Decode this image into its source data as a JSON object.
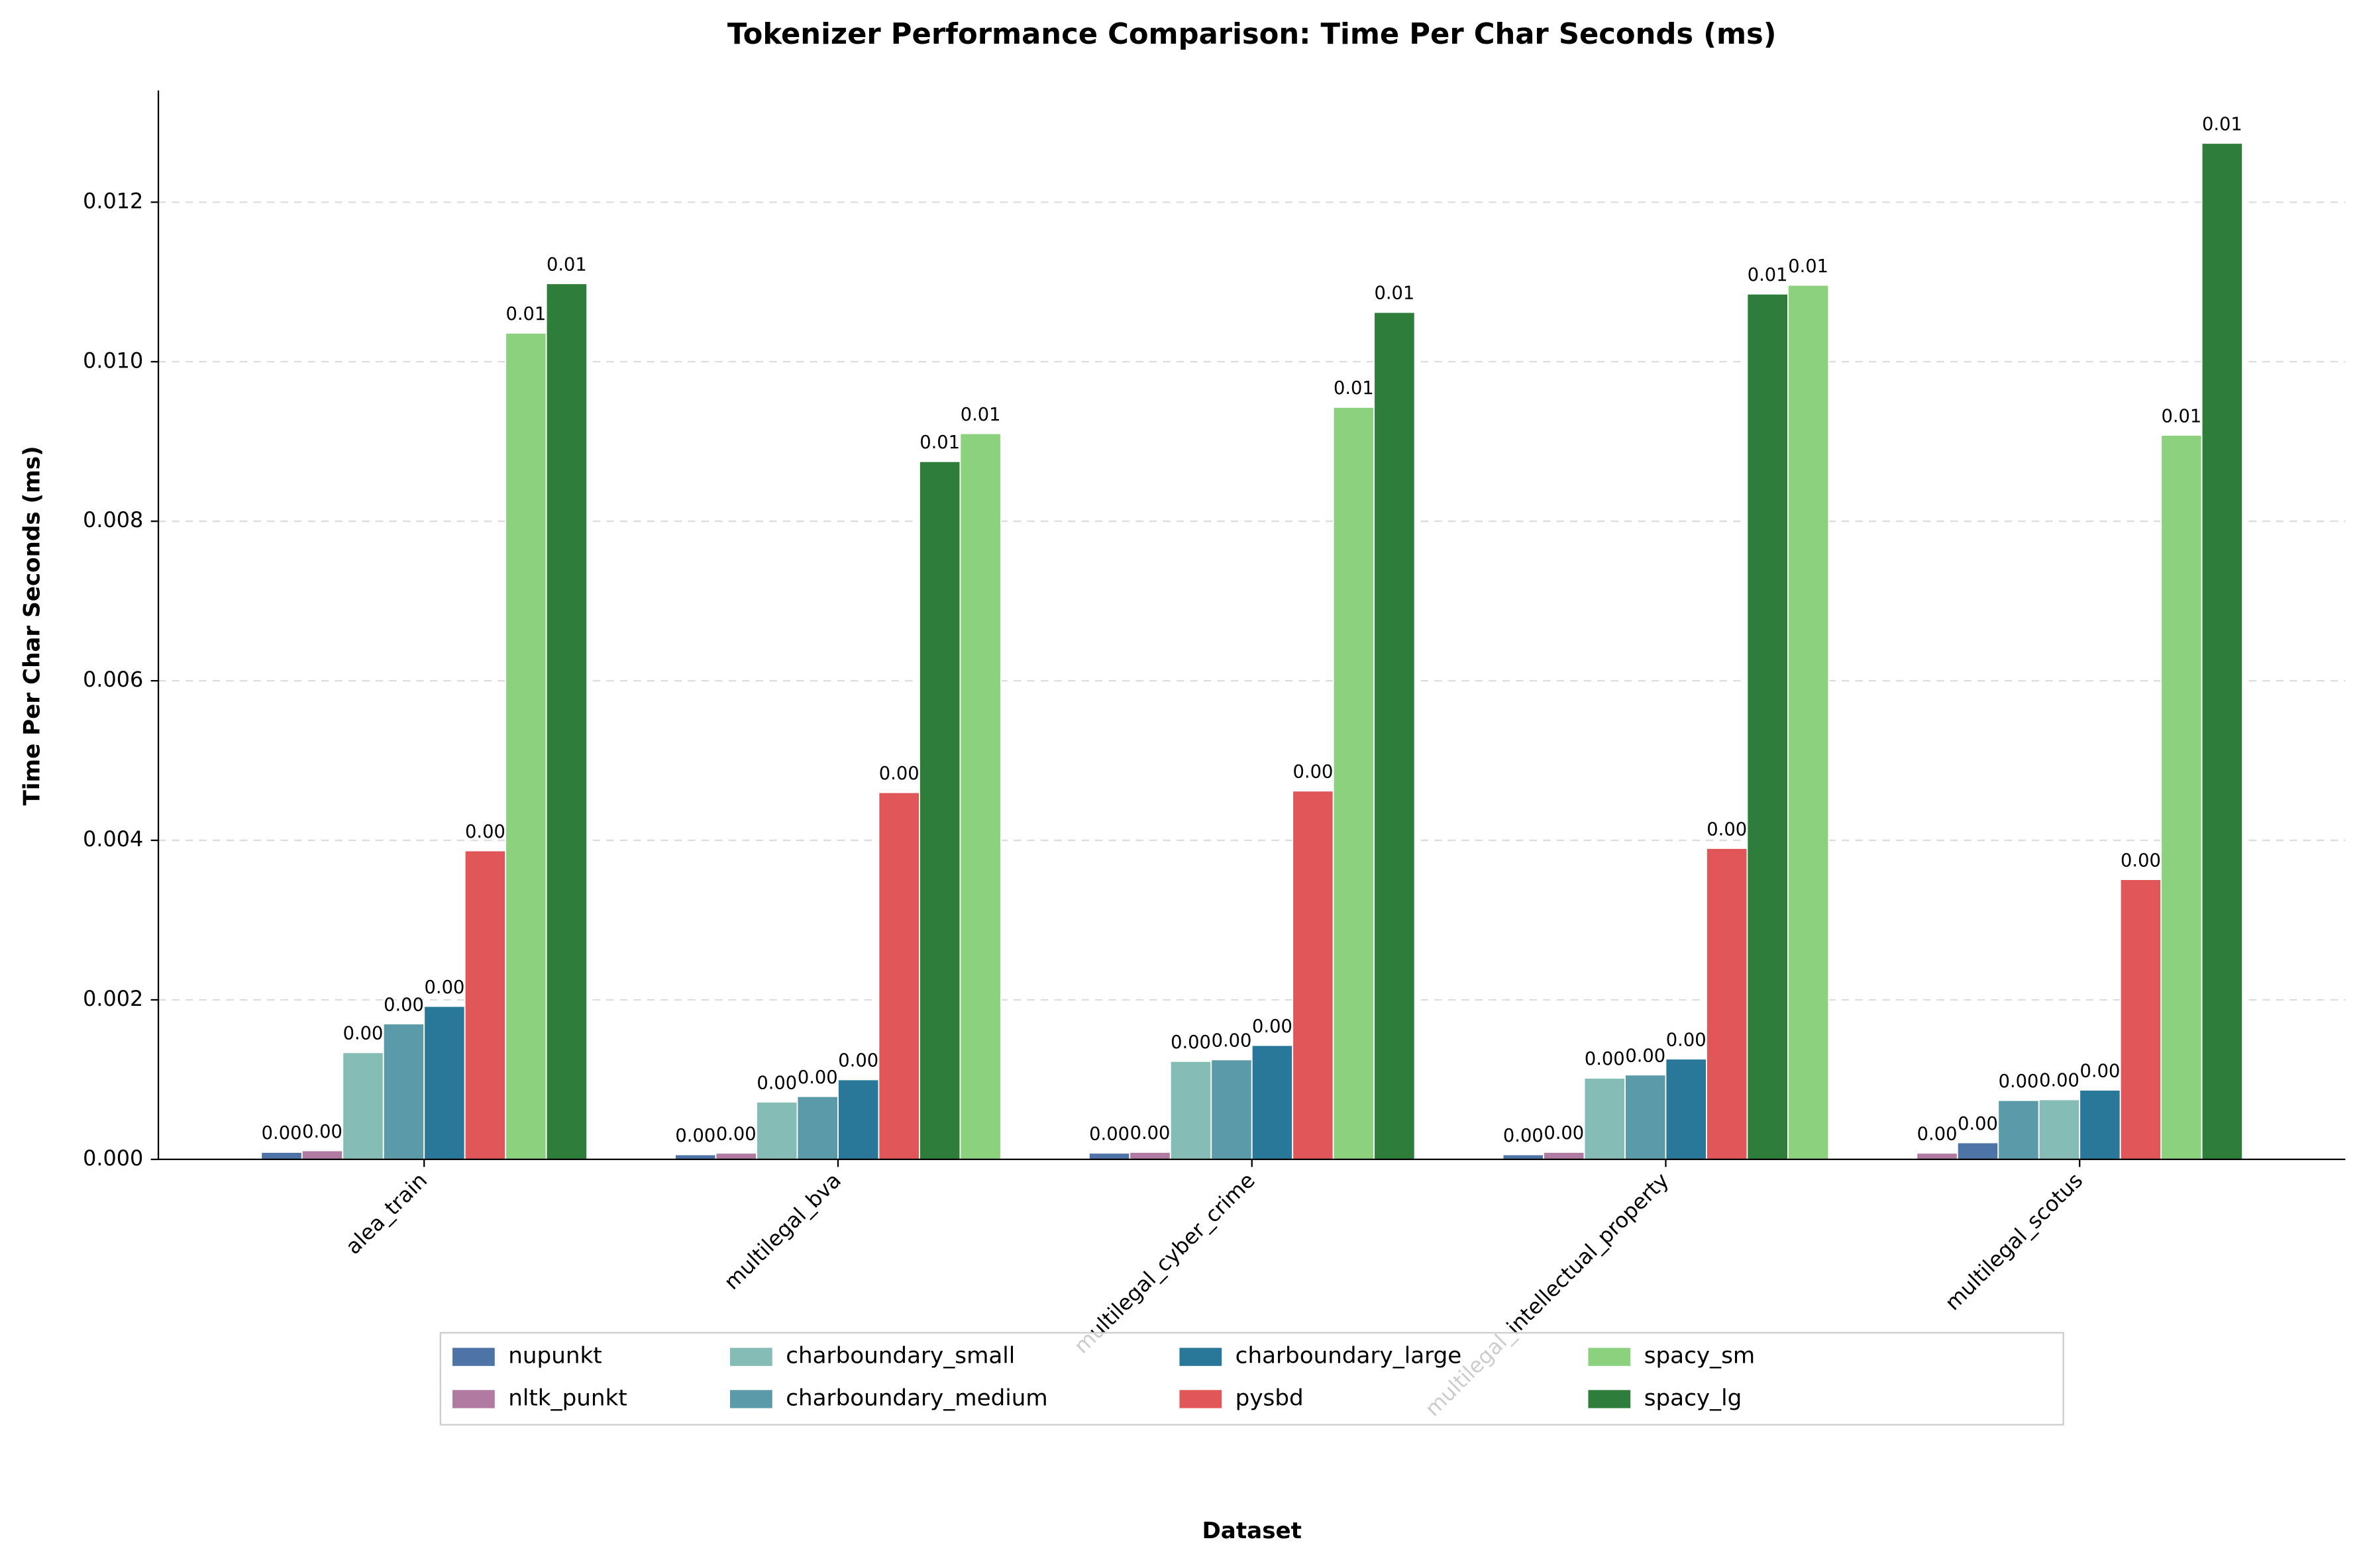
{
  "chart_data": {
    "type": "bar",
    "title": "Tokenizer Performance Comparison: Time Per Char Seconds (ms)",
    "xlabel": "Dataset",
    "ylabel": "Time Per Char Seconds (ms)",
    "categories": [
      "alea_train",
      "multilegal_bva",
      "multilegal_cyber_crime",
      "multilegal_intellectual_property",
      "multilegal_scotus"
    ],
    "ylim": [
      0,
      0.0134
    ],
    "yticks": [
      {
        "value": 0,
        "label": "0.000"
      },
      {
        "value": 0.002,
        "label": "0.002"
      },
      {
        "value": 0.004,
        "label": "0.004"
      },
      {
        "value": 0.006,
        "label": "0.006"
      },
      {
        "value": 0.008,
        "label": "0.008"
      },
      {
        "value": 0.01,
        "label": "0.010"
      },
      {
        "value": 0.012,
        "label": "0.012"
      }
    ],
    "grid": true,
    "legend": "lower center",
    "series": [
      {
        "name": "nupunkt",
        "color": "#4e73a6",
        "values": [
          9e-05,
          6e-05,
          8e-05,
          6e-05,
          0.00021
        ],
        "value_labels": [
          "0.00",
          "0.00",
          "0.00",
          "0.00",
          "0.00"
        ]
      },
      {
        "name": "nltk_punkt",
        "color": "#b07aa1",
        "values": [
          0.00011,
          8e-05,
          9e-05,
          9e-05,
          8e-05
        ],
        "value_labels": [
          "0.00",
          "0.00",
          "0.00",
          "0.00",
          "0.00"
        ]
      },
      {
        "name": "charboundary_small",
        "color": "#86bcb6",
        "values": [
          0.00134,
          0.00072,
          0.00123,
          0.00102,
          0.00075
        ],
        "value_labels": [
          "0.00",
          "0.00",
          "0.00",
          "0.00",
          "0.00"
        ]
      },
      {
        "name": "charboundary_medium",
        "color": "#5b9aa8",
        "values": [
          0.0017,
          0.00079,
          0.00125,
          0.00106,
          0.00074
        ],
        "value_labels": [
          "0.00",
          "0.00",
          "0.00",
          "0.00",
          "0.00"
        ]
      },
      {
        "name": "charboundary_large",
        "color": "#2a7899",
        "values": [
          0.00192,
          0.001,
          0.00143,
          0.00126,
          0.00087
        ],
        "value_labels": [
          "0.00",
          "0.00",
          "0.00",
          "0.00",
          "0.00"
        ]
      },
      {
        "name": "pysbd",
        "color": "#e15759",
        "values": [
          0.00387,
          0.0046,
          0.00462,
          0.0039,
          0.00351
        ],
        "value_labels": [
          "0.00",
          "0.00",
          "0.00",
          "0.00",
          "0.00"
        ]
      },
      {
        "name": "spacy_sm",
        "color": "#8cd17d",
        "values": [
          0.01036,
          0.0091,
          0.00943,
          0.01096,
          0.00908
        ],
        "value_labels": [
          "0.01",
          "0.01",
          "0.01",
          "0.01",
          "0.01"
        ]
      },
      {
        "name": "spacy_lg",
        "color": "#2e7d3a",
        "values": [
          0.01098,
          0.00875,
          0.01062,
          0.01085,
          0.01274
        ],
        "value_labels": [
          "0.01",
          "0.01",
          "0.01",
          "0.01",
          "0.01"
        ]
      }
    ]
  }
}
